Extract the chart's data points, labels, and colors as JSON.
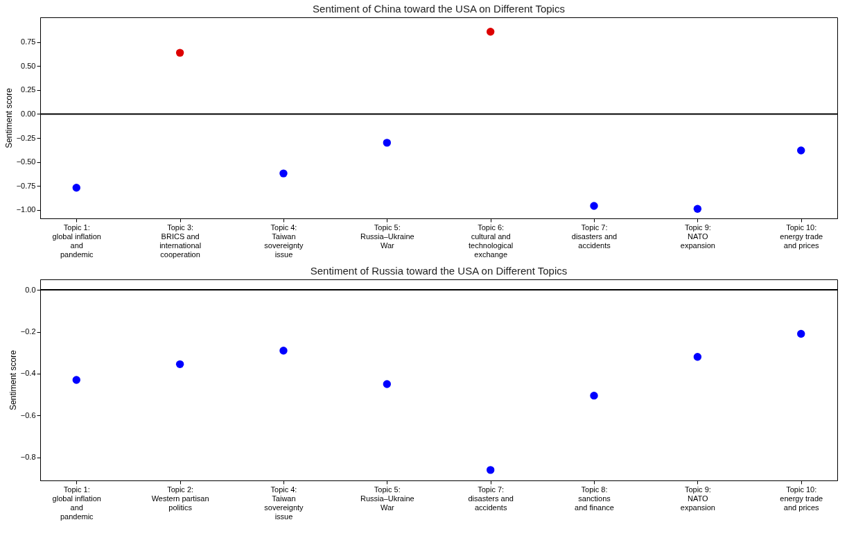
{
  "chart_data": [
    {
      "type": "scatter",
      "title": "Sentiment of China toward the USA on Different Topics",
      "ylabel": "Sentiment score",
      "categories": [
        "Topic 1:\nglobal inflation\nand\npandemic",
        "Topic 3:\nBRICS and\ninternational\ncooperation",
        "Topic 4:\nTaiwan\nsovereignty\nissue",
        "Topic 5:\nRussia–Ukraine\nWar",
        "Topic 6:\ncultural and\ntechnological\nexchange",
        "Topic 7:\ndisasters and\naccidents",
        "Topic 9:\nNATO\nexpansion",
        "Topic 10:\nenergy trade\nand prices"
      ],
      "values": [
        -0.77,
        0.64,
        -0.62,
        -0.3,
        0.86,
        -0.96,
        -0.99,
        -0.38
      ],
      "colors": [
        "#0000ff",
        "#dd0000",
        "#0000ff",
        "#0000ff",
        "#dd0000",
        "#0000ff",
        "#0000ff",
        "#0000ff"
      ],
      "ylim": [
        -1.09,
        1.01
      ],
      "yticks": [
        {
          "value": -1.0,
          "label": "−1.00"
        },
        {
          "value": -0.75,
          "label": "−0.75"
        },
        {
          "value": -0.5,
          "label": "−0.50"
        },
        {
          "value": -0.25,
          "label": "−0.25"
        },
        {
          "value": 0,
          "label": "0.00"
        },
        {
          "value": 0.25,
          "label": "0.25"
        },
        {
          "value": 0.5,
          "label": "0.50"
        },
        {
          "value": 0.75,
          "label": "0.75"
        }
      ],
      "ref_lines": [
        {
          "axis": "y",
          "value": 0,
          "color": "#000000"
        }
      ],
      "grid": false,
      "marker": "circle"
    },
    {
      "type": "scatter",
      "title": "Sentiment of Russia toward the USA on Different Topics",
      "ylabel": "Sentiment score",
      "categories": [
        "Topic 1:\nglobal inflation\nand\npandemic",
        "Topic 2:\nWestern partisan\npolitics",
        "Topic 4:\nTaiwan\nsovereignty\nissue",
        "Topic 5:\nRussia–Ukraine\nWar",
        "Topic 7:\ndisasters and\naccidents",
        "Topic 8:\nsanctions\nand finance",
        "Topic 9:\nNATO\nexpansion",
        "Topic 10:\nenergy trade\nand prices"
      ],
      "values": [
        -0.43,
        -0.355,
        -0.29,
        -0.45,
        -0.86,
        -0.505,
        -0.32,
        -0.21
      ],
      "colors": [
        "#0000ff",
        "#0000ff",
        "#0000ff",
        "#0000ff",
        "#0000ff",
        "#0000ff",
        "#0000ff",
        "#0000ff"
      ],
      "ylim": [
        -0.91,
        0.05
      ],
      "yticks": [
        {
          "value": -0.8,
          "label": "−0.8"
        },
        {
          "value": -0.6,
          "label": "−0.6"
        },
        {
          "value": -0.4,
          "label": "−0.4"
        },
        {
          "value": -0.2,
          "label": "−0.2"
        },
        {
          "value": 0,
          "label": "0.0"
        }
      ],
      "ref_lines": [
        {
          "axis": "y",
          "value": 0,
          "color": "#000000"
        }
      ],
      "grid": false,
      "marker": "circle"
    }
  ]
}
